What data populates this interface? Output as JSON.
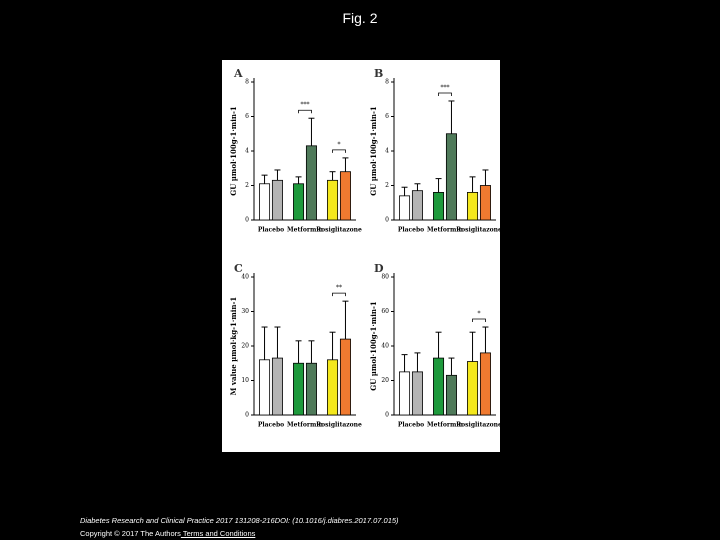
{
  "page": {
    "title": "Fig. 2",
    "caption": "Diabetes Research and Clinical Practice 2017 131208-216DOI: (10.1016/j.diabres.2017.07.015)",
    "copyright": "Copyright © 2017 The Authors",
    "link": " Terms and Conditions"
  },
  "chart_data": [
    {
      "type": "bar",
      "panel": "A",
      "y_label": "GU µmol·100g-1·min-1",
      "categories": [
        "Placebo",
        "Metformin",
        "Rosiglitazone"
      ],
      "series": [
        {
          "colors": [
            "#ffffff",
            "#1e9a3c",
            "#f4e81c"
          ],
          "values": [
            2.1,
            2.1,
            2.3
          ],
          "errors": [
            0.5,
            0.4,
            0.5
          ]
        },
        {
          "colors": [
            "#b4b4b4",
            "#4f7a5a",
            "#f07a30"
          ],
          "values": [
            2.3,
            4.3,
            2.8
          ],
          "errors": [
            0.6,
            1.6,
            0.8
          ]
        }
      ],
      "annotations": [
        "***",
        "*"
      ],
      "ylim": [
        0,
        8
      ],
      "yticks": [
        0,
        2,
        4,
        6,
        8
      ]
    },
    {
      "type": "bar",
      "panel": "B",
      "y_label": "GU µmol·100g-1·min-1",
      "categories": [
        "Placebo",
        "Metformin",
        "Rosiglitazone"
      ],
      "series": [
        {
          "colors": [
            "#ffffff",
            "#1e9a3c",
            "#f4e81c"
          ],
          "values": [
            1.4,
            1.6,
            1.6
          ],
          "errors": [
            0.5,
            0.8,
            0.9
          ]
        },
        {
          "colors": [
            "#b4b4b4",
            "#4f7a5a",
            "#f07a30"
          ],
          "values": [
            1.7,
            5.0,
            2.0
          ],
          "errors": [
            0.4,
            1.9,
            0.9
          ]
        }
      ],
      "annotations": [
        "***"
      ],
      "ylim": [
        0,
        8
      ],
      "yticks": [
        0,
        2,
        4,
        6,
        8
      ]
    },
    {
      "type": "bar",
      "panel": "C",
      "y_label": "M value µmol·kg-1·min-1",
      "categories": [
        "Placebo",
        "Metformin",
        "Rosiglitazone"
      ],
      "series": [
        {
          "colors": [
            "#ffffff",
            "#1e9a3c",
            "#f4e81c"
          ],
          "values": [
            16,
            15,
            16
          ],
          "errors": [
            9.5,
            6.5,
            8
          ]
        },
        {
          "colors": [
            "#b4b4b4",
            "#4f7a5a",
            "#f07a30"
          ],
          "values": [
            16.5,
            15,
            22
          ],
          "errors": [
            9,
            6.5,
            11
          ]
        }
      ],
      "annotations": [
        "**"
      ],
      "ylim": [
        0,
        40
      ],
      "yticks": [
        0,
        10,
        20,
        30,
        40
      ]
    },
    {
      "type": "bar",
      "panel": "D",
      "y_label": "GU µmol·100g-1·min-1",
      "categories": [
        "Placebo",
        "Metformin",
        "Rosiglitazone"
      ],
      "series": [
        {
          "colors": [
            "#ffffff",
            "#1e9a3c",
            "#f4e81c"
          ],
          "values": [
            25,
            33,
            31
          ],
          "errors": [
            10,
            15,
            17
          ]
        },
        {
          "colors": [
            "#b4b4b4",
            "#4f7a5a",
            "#f07a30"
          ],
          "values": [
            25,
            23,
            36
          ],
          "errors": [
            11,
            10,
            15
          ]
        }
      ],
      "annotations": [
        "*"
      ],
      "ylim": [
        0,
        80
      ],
      "yticks": [
        0,
        20,
        40,
        60,
        80
      ]
    }
  ]
}
